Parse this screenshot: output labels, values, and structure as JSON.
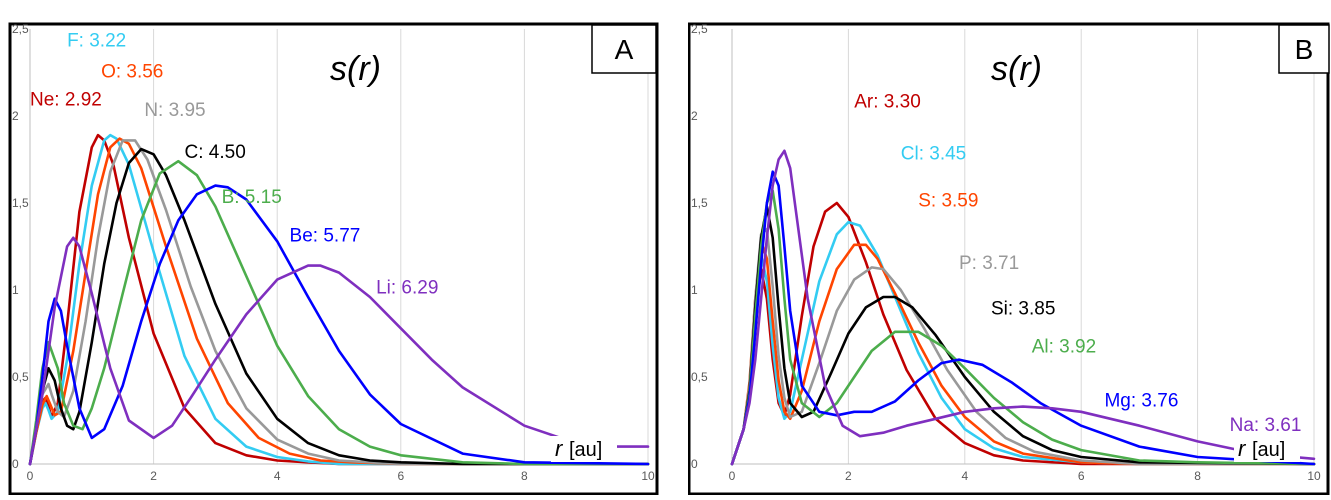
{
  "chart_data": [
    {
      "type": "line",
      "panel_letter": "A",
      "title": "s(r)",
      "title_var": "r",
      "xlabel_var": "r",
      "xlabel_unit": "[au]",
      "xlim": [
        0,
        10
      ],
      "ylim": [
        0,
        2.5
      ],
      "x_ticks": [
        "0",
        "2",
        "4",
        "6",
        "8",
        "10"
      ],
      "y_ticks": [
        "0",
        "0,5",
        "1",
        "1,5",
        "2",
        "2,5"
      ],
      "grid": "vertical",
      "legend": "inline-labels",
      "series": [
        {
          "name": "Ne: 2.92",
          "color": "#c00000",
          "label_pos": [
            0.0,
            2.06
          ],
          "x": [
            0,
            0.1,
            0.2,
            0.25,
            0.3,
            0.35,
            0.45,
            0.6,
            0.8,
            1.0,
            1.1,
            1.2,
            1.35,
            1.6,
            2.0,
            2.5,
            3.0,
            3.5,
            4.0,
            4.5,
            5.0,
            6.0,
            10
          ],
          "y": [
            0,
            0.2,
            0.36,
            0.38,
            0.33,
            0.27,
            0.35,
            0.8,
            1.45,
            1.82,
            1.89,
            1.86,
            1.72,
            1.3,
            0.75,
            0.32,
            0.12,
            0.05,
            0.02,
            0.01,
            0,
            0,
            0
          ]
        },
        {
          "name": "F: 3.22",
          "color": "#33ccf2",
          "label_pos": [
            0.6,
            2.4
          ],
          "x": [
            0,
            0.1,
            0.2,
            0.25,
            0.3,
            0.35,
            0.45,
            0.6,
            0.8,
            1.0,
            1.2,
            1.3,
            1.4,
            1.6,
            2.0,
            2.5,
            3.0,
            3.5,
            4.0,
            4.5,
            5.0,
            6.0,
            10
          ],
          "y": [
            0,
            0.18,
            0.32,
            0.35,
            0.31,
            0.26,
            0.3,
            0.6,
            1.15,
            1.6,
            1.86,
            1.89,
            1.87,
            1.72,
            1.22,
            0.62,
            0.26,
            0.1,
            0.04,
            0.015,
            0,
            0,
            0
          ]
        },
        {
          "name": "O: 3.56",
          "color": "#ff4500",
          "label_pos": [
            1.15,
            2.22
          ],
          "x": [
            0,
            0.1,
            0.2,
            0.27,
            0.33,
            0.4,
            0.5,
            0.7,
            0.9,
            1.1,
            1.3,
            1.45,
            1.6,
            1.8,
            2.2,
            2.7,
            3.2,
            3.7,
            4.2,
            4.7,
            5.2,
            6.0,
            10
          ],
          "y": [
            0,
            0.18,
            0.34,
            0.39,
            0.34,
            0.28,
            0.3,
            0.65,
            1.1,
            1.55,
            1.82,
            1.87,
            1.84,
            1.7,
            1.25,
            0.72,
            0.35,
            0.15,
            0.06,
            0.02,
            0.01,
            0,
            0
          ]
        },
        {
          "name": "N: 3.95",
          "color": "#999999",
          "label_pos": [
            1.85,
            2.0
          ],
          "x": [
            0,
            0.1,
            0.2,
            0.3,
            0.35,
            0.45,
            0.55,
            0.7,
            0.9,
            1.1,
            1.3,
            1.5,
            1.7,
            1.9,
            2.2,
            2.6,
            3.0,
            3.5,
            4.0,
            4.5,
            5.0,
            5.5,
            6.0,
            7.0,
            10
          ],
          "y": [
            0,
            0.2,
            0.4,
            0.46,
            0.4,
            0.3,
            0.27,
            0.42,
            0.82,
            1.3,
            1.68,
            1.86,
            1.86,
            1.75,
            1.46,
            1.02,
            0.65,
            0.32,
            0.14,
            0.06,
            0.02,
            0.01,
            0,
            0,
            0
          ]
        },
        {
          "name": "C: 4.50",
          "color": "#000000",
          "label_pos": [
            2.5,
            1.76
          ],
          "x": [
            0,
            0.1,
            0.2,
            0.3,
            0.4,
            0.5,
            0.6,
            0.7,
            0.8,
            1.0,
            1.2,
            1.4,
            1.6,
            1.8,
            2.0,
            2.2,
            2.5,
            3.0,
            3.5,
            4.0,
            4.5,
            5.0,
            5.5,
            6.0,
            7.0,
            10
          ],
          "y": [
            0,
            0.2,
            0.42,
            0.55,
            0.48,
            0.32,
            0.22,
            0.2,
            0.3,
            0.7,
            1.15,
            1.5,
            1.73,
            1.81,
            1.78,
            1.66,
            1.4,
            0.92,
            0.52,
            0.26,
            0.12,
            0.05,
            0.02,
            0.01,
            0,
            0
          ]
        },
        {
          "name": "B: 5.15",
          "color": "#4cad4c",
          "label_pos": [
            3.1,
            1.5
          ],
          "x": [
            0,
            0.1,
            0.2,
            0.3,
            0.45,
            0.55,
            0.7,
            0.85,
            1.0,
            1.2,
            1.5,
            1.8,
            2.1,
            2.4,
            2.7,
            3.0,
            3.5,
            4.0,
            4.5,
            5.0,
            5.5,
            6.0,
            7.0,
            8.0,
            10
          ],
          "y": [
            0,
            0.25,
            0.55,
            0.7,
            0.55,
            0.35,
            0.22,
            0.2,
            0.32,
            0.55,
            0.98,
            1.4,
            1.67,
            1.74,
            1.66,
            1.48,
            1.08,
            0.68,
            0.39,
            0.2,
            0.1,
            0.05,
            0.01,
            0,
            0
          ]
        },
        {
          "name": "Be: 5.77",
          "color": "#0000ff",
          "label_pos": [
            4.2,
            1.28
          ],
          "x": [
            0,
            0.1,
            0.2,
            0.3,
            0.4,
            0.5,
            0.6,
            0.8,
            1.0,
            1.2,
            1.5,
            1.8,
            2.1,
            2.4,
            2.7,
            3.0,
            3.2,
            3.5,
            4.0,
            4.5,
            5.0,
            5.5,
            6.0,
            7.0,
            8.0,
            10
          ],
          "y": [
            0,
            0.2,
            0.5,
            0.82,
            0.95,
            0.88,
            0.68,
            0.32,
            0.15,
            0.2,
            0.45,
            0.82,
            1.15,
            1.4,
            1.55,
            1.6,
            1.59,
            1.52,
            1.28,
            0.96,
            0.65,
            0.4,
            0.23,
            0.06,
            0.01,
            0
          ]
        },
        {
          "name": "Li: 6.29",
          "color": "#7f2fbf",
          "label_pos": [
            5.6,
            0.98
          ],
          "x": [
            0,
            0.2,
            0.4,
            0.6,
            0.7,
            0.8,
            1.0,
            1.3,
            1.6,
            2.0,
            2.3,
            2.6,
            3.0,
            3.5,
            4.0,
            4.5,
            4.7,
            5.0,
            5.5,
            6.0,
            6.5,
            7.0,
            8.0,
            9.0,
            10
          ],
          "y": [
            0,
            0.4,
            0.9,
            1.25,
            1.3,
            1.25,
            0.98,
            0.55,
            0.25,
            0.15,
            0.22,
            0.38,
            0.6,
            0.86,
            1.06,
            1.14,
            1.14,
            1.1,
            0.96,
            0.78,
            0.6,
            0.44,
            0.22,
            0.1,
            0.1
          ]
        }
      ]
    },
    {
      "type": "line",
      "panel_letter": "B",
      "title": "s(r)",
      "title_var": "r",
      "xlabel_var": "r",
      "xlabel_unit": "[au]",
      "xlim": [
        0,
        10
      ],
      "ylim": [
        0,
        2.5
      ],
      "x_ticks": [
        "0",
        "2",
        "4",
        "6",
        "8",
        "10"
      ],
      "y_ticks": [
        "0",
        "0,5",
        "1",
        "1,5",
        "2",
        "2,5"
      ],
      "grid": "vertical",
      "legend": "inline-labels",
      "series": [
        {
          "name": "Ar: 3.30",
          "color": "#c00000",
          "label_pos": [
            2.1,
            2.05
          ],
          "x": [
            0,
            0.1,
            0.2,
            0.3,
            0.4,
            0.5,
            0.6,
            0.7,
            0.8,
            0.9,
            1.0,
            1.2,
            1.4,
            1.6,
            1.8,
            2.0,
            2.3,
            2.6,
            3.0,
            3.5,
            4.0,
            4.5,
            5.0,
            6.0,
            7.0,
            10
          ],
          "y": [
            0,
            0.1,
            0.2,
            0.42,
            0.85,
            1.12,
            0.95,
            0.6,
            0.35,
            0.28,
            0.4,
            0.85,
            1.25,
            1.45,
            1.5,
            1.42,
            1.16,
            0.86,
            0.54,
            0.26,
            0.12,
            0.05,
            0.02,
            0,
            0,
            0
          ]
        },
        {
          "name": "Cl: 3.45",
          "color": "#33ccf2",
          "label_pos": [
            2.9,
            1.75
          ],
          "x": [
            0,
            0.1,
            0.2,
            0.3,
            0.4,
            0.5,
            0.6,
            0.7,
            0.8,
            0.9,
            1.0,
            1.2,
            1.5,
            1.8,
            2.0,
            2.2,
            2.5,
            2.8,
            3.2,
            3.6,
            4.0,
            4.5,
            5.0,
            6.0,
            7.0,
            10
          ],
          "y": [
            0,
            0.1,
            0.2,
            0.45,
            0.9,
            1.2,
            1.05,
            0.68,
            0.38,
            0.26,
            0.3,
            0.6,
            1.05,
            1.32,
            1.39,
            1.37,
            1.2,
            0.96,
            0.64,
            0.38,
            0.2,
            0.09,
            0.04,
            0.01,
            0,
            0
          ]
        },
        {
          "name": "S: 3.59",
          "color": "#ff4500",
          "label_pos": [
            3.2,
            1.48
          ],
          "x": [
            0,
            0.1,
            0.2,
            0.3,
            0.4,
            0.5,
            0.6,
            0.7,
            0.8,
            0.9,
            1.0,
            1.2,
            1.5,
            1.8,
            2.1,
            2.3,
            2.5,
            2.8,
            3.2,
            3.6,
            4.0,
            4.5,
            5.0,
            6.0,
            7.0,
            10
          ],
          "y": [
            0,
            0.1,
            0.2,
            0.47,
            0.95,
            1.28,
            1.18,
            0.82,
            0.48,
            0.3,
            0.26,
            0.42,
            0.82,
            1.12,
            1.26,
            1.26,
            1.18,
            0.98,
            0.7,
            0.45,
            0.27,
            0.13,
            0.06,
            0.01,
            0,
            0
          ]
        },
        {
          "name": "P: 3.71",
          "color": "#999999",
          "label_pos": [
            3.9,
            1.12
          ],
          "x": [
            0,
            0.1,
            0.2,
            0.3,
            0.4,
            0.5,
            0.6,
            0.7,
            0.8,
            0.9,
            1.0,
            1.2,
            1.5,
            1.8,
            2.1,
            2.4,
            2.6,
            2.9,
            3.3,
            3.7,
            4.2,
            4.7,
            5.2,
            6.0,
            7.0,
            10
          ],
          "y": [
            0,
            0.1,
            0.2,
            0.45,
            0.95,
            1.32,
            1.35,
            1.02,
            0.62,
            0.38,
            0.27,
            0.3,
            0.58,
            0.88,
            1.06,
            1.13,
            1.12,
            1.0,
            0.78,
            0.54,
            0.3,
            0.15,
            0.07,
            0.02,
            0,
            0
          ]
        },
        {
          "name": "Si: 3.85",
          "color": "#000000",
          "label_pos": [
            4.45,
            0.86
          ],
          "x": [
            0,
            0.1,
            0.2,
            0.3,
            0.4,
            0.5,
            0.6,
            0.7,
            0.8,
            0.9,
            1.0,
            1.2,
            1.4,
            1.7,
            2.0,
            2.3,
            2.6,
            2.8,
            3.1,
            3.5,
            4.0,
            4.5,
            5.0,
            5.5,
            6.0,
            7.0,
            10
          ],
          "y": [
            0,
            0.1,
            0.2,
            0.42,
            0.9,
            1.3,
            1.48,
            1.3,
            0.9,
            0.55,
            0.35,
            0.27,
            0.3,
            0.52,
            0.75,
            0.9,
            0.96,
            0.96,
            0.9,
            0.74,
            0.5,
            0.3,
            0.16,
            0.08,
            0.04,
            0.01,
            0
          ]
        },
        {
          "name": "Al: 3.92",
          "color": "#4cad4c",
          "label_pos": [
            5.15,
            0.64
          ],
          "x": [
            0,
            0.1,
            0.2,
            0.3,
            0.4,
            0.5,
            0.6,
            0.7,
            0.8,
            0.9,
            1.0,
            1.2,
            1.5,
            1.8,
            2.1,
            2.4,
            2.8,
            3.2,
            3.6,
            4.0,
            4.5,
            5.0,
            5.5,
            6.0,
            7.0,
            8.0,
            10
          ],
          "y": [
            0,
            0.1,
            0.2,
            0.4,
            0.85,
            1.25,
            1.5,
            1.57,
            1.35,
            0.95,
            0.6,
            0.35,
            0.27,
            0.35,
            0.5,
            0.65,
            0.76,
            0.76,
            0.68,
            0.55,
            0.38,
            0.24,
            0.14,
            0.08,
            0.02,
            0.01,
            0
          ]
        },
        {
          "name": "Mg: 3.76",
          "color": "#0000ff",
          "label_pos": [
            6.4,
            0.33
          ],
          "x": [
            0,
            0.1,
            0.2,
            0.3,
            0.4,
            0.5,
            0.6,
            0.7,
            0.8,
            0.9,
            1.0,
            1.2,
            1.5,
            1.8,
            2.1,
            2.4,
            2.8,
            3.2,
            3.6,
            3.9,
            4.3,
            4.8,
            5.3,
            6.0,
            7.0,
            8.0,
            10
          ],
          "y": [
            0,
            0.1,
            0.2,
            0.38,
            0.75,
            1.15,
            1.5,
            1.68,
            1.6,
            1.25,
            0.88,
            0.45,
            0.3,
            0.28,
            0.3,
            0.3,
            0.36,
            0.48,
            0.58,
            0.6,
            0.57,
            0.47,
            0.35,
            0.22,
            0.1,
            0.04,
            0
          ]
        },
        {
          "name": "Na: 3.61",
          "color": "#7f2fbf",
          "label_pos": [
            8.55,
            0.19
          ],
          "x": [
            0,
            0.1,
            0.2,
            0.3,
            0.4,
            0.5,
            0.6,
            0.7,
            0.8,
            0.9,
            1.0,
            1.1,
            1.3,
            1.6,
            1.9,
            2.2,
            2.6,
            3.0,
            3.5,
            4.0,
            4.5,
            5.0,
            5.5,
            6.0,
            7.0,
            8.0,
            9.0,
            10
          ],
          "y": [
            0,
            0.1,
            0.2,
            0.35,
            0.6,
            0.95,
            1.3,
            1.6,
            1.75,
            1.8,
            1.7,
            1.45,
            0.95,
            0.45,
            0.22,
            0.16,
            0.18,
            0.22,
            0.26,
            0.3,
            0.32,
            0.33,
            0.32,
            0.3,
            0.22,
            0.13,
            0.06,
            0.03
          ]
        }
      ]
    }
  ]
}
